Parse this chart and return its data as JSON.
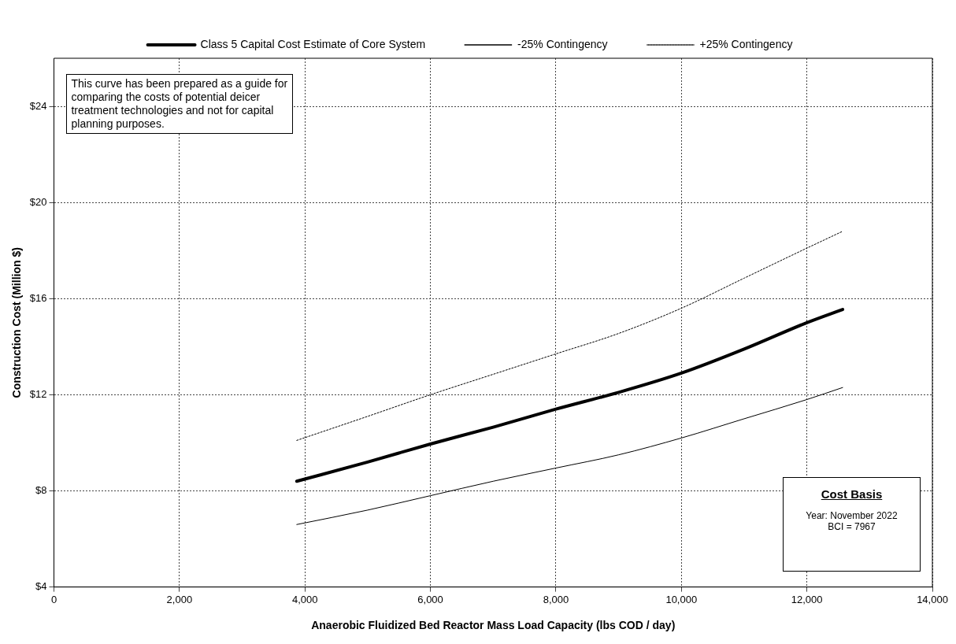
{
  "chart_data": {
    "type": "line",
    "xlabel": "Anaerobic Fluidized Bed Reactor Mass Load Capacity (lbs COD / day)",
    "ylabel": "Construction Cost (Million $)",
    "x": [
      3870,
      5000,
      6000,
      7000,
      8000,
      9000,
      10000,
      11000,
      12000,
      12570
    ],
    "series": [
      {
        "name": "Class 5 Capital Cost Estimate of Core System",
        "color": "#000000",
        "line_style": "solid",
        "values": [
          8.4,
          9.2,
          9.95,
          10.65,
          11.4,
          12.1,
          12.9,
          13.9,
          15.0,
          15.55
        ]
      },
      {
        "name": "-25% Contingency",
        "color": "#000000",
        "line_style": "solid",
        "values": [
          6.6,
          7.2,
          7.8,
          8.4,
          8.95,
          9.5,
          10.2,
          11.0,
          11.8,
          12.3
        ]
      },
      {
        "name": "+25% Contingency",
        "color": "#000000",
        "line_style": "dotted",
        "values": [
          10.1,
          11.1,
          12.0,
          12.85,
          13.7,
          14.55,
          15.6,
          16.85,
          18.1,
          18.8
        ]
      }
    ],
    "xlim": [
      0,
      14000
    ],
    "xticks": [
      0,
      {
        "value": 2000,
        "label": "2,000"
      },
      {
        "value": 4000,
        "label": "4,000"
      },
      {
        "value": 6000,
        "label": "6,000"
      },
      {
        "value": 8000,
        "label": "8,000"
      },
      {
        "value": 10000,
        "label": "10,000"
      },
      {
        "value": 12000,
        "label": "12,000"
      },
      {
        "value": 14000,
        "label": "14,000"
      }
    ],
    "ylim": [
      4,
      26
    ],
    "yticks": [
      {
        "value": 4,
        "label": "$4"
      },
      {
        "value": 8,
        "label": "$8"
      },
      {
        "value": 12,
        "label": "$12"
      },
      {
        "value": 16,
        "label": "$16"
      },
      {
        "value": 20,
        "label": "$20"
      },
      {
        "value": 24,
        "label": "$24"
      }
    ],
    "grid": true,
    "legend": "top",
    "marker": "none",
    "annotations": [
      "This curve has been prepared as a guide for comparing the costs of potential deicer treatment technologies and not for capital planning purposes.",
      "Cost Basis",
      "Year: November 2022\nBCI = 7967"
    ]
  }
}
